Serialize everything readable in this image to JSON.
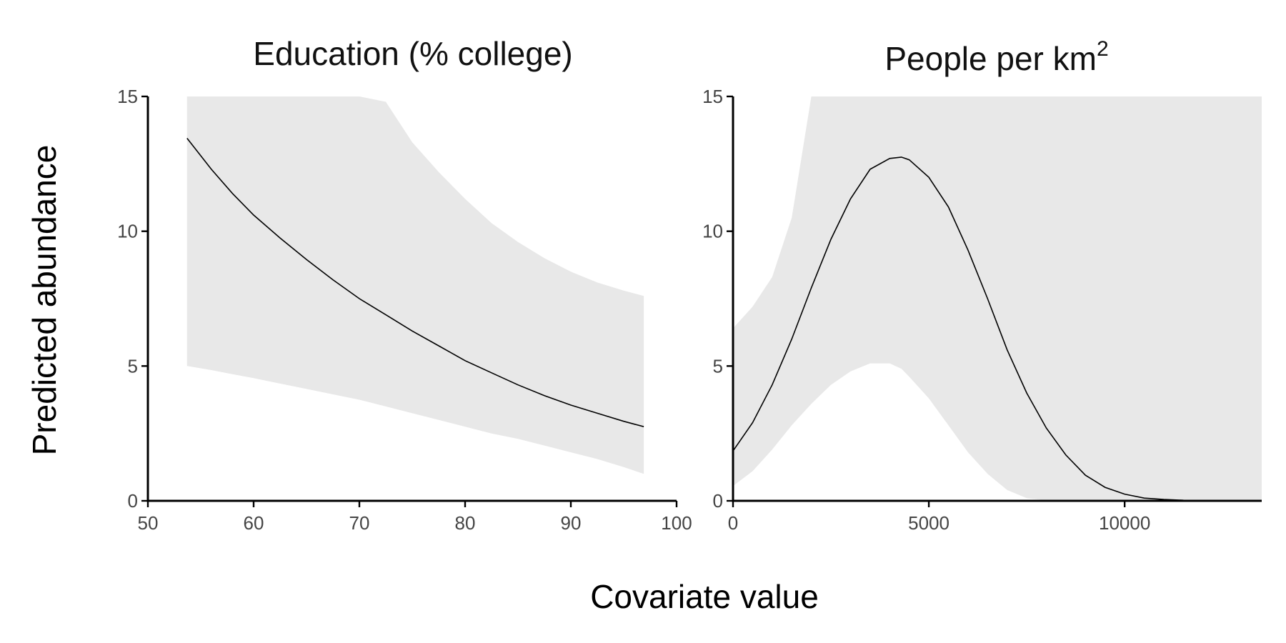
{
  "figure": {
    "xlabel": "Covariate value",
    "ylabel": "Predicted abundance"
  },
  "chart_data": [
    {
      "type": "line",
      "title": "Education (% college)",
      "xlim": [
        50,
        100
      ],
      "ylim": [
        0,
        15
      ],
      "xticks": [
        50,
        60,
        70,
        80,
        90,
        100
      ],
      "yticks": [
        0,
        5,
        10,
        15
      ],
      "x": [
        53.7,
        56,
        58,
        60,
        62.5,
        65,
        67.5,
        70,
        72.5,
        75,
        77.5,
        80,
        82.5,
        85,
        87.5,
        90,
        92.5,
        95,
        96.9
      ],
      "fit": [
        13.45,
        12.3,
        11.4,
        10.6,
        9.75,
        8.95,
        8.2,
        7.5,
        6.9,
        6.3,
        5.75,
        5.2,
        4.75,
        4.3,
        3.9,
        3.55,
        3.25,
        2.95,
        2.75
      ],
      "lower": [
        5.0,
        4.85,
        4.7,
        4.55,
        4.35,
        4.15,
        3.95,
        3.75,
        3.5,
        3.25,
        3.0,
        2.75,
        2.5,
        2.3,
        2.05,
        1.8,
        1.55,
        1.25,
        1.0
      ],
      "upper": [
        15,
        15,
        15,
        15,
        15,
        15,
        15,
        15,
        14.8,
        13.3,
        12.2,
        11.2,
        10.3,
        9.6,
        9.0,
        8.5,
        8.1,
        7.8,
        7.6
      ],
      "series": [
        {
          "values_key": "fit"
        }
      ]
    },
    {
      "type": "line",
      "title": "People per km",
      "title_superscript": "2",
      "xlim": [
        0,
        13500
      ],
      "ylim": [
        0,
        15
      ],
      "xticks": [
        0,
        5000,
        10000
      ],
      "yticks": [
        0,
        5,
        10,
        15
      ],
      "x": [
        0,
        500,
        1000,
        1500,
        2000,
        2500,
        3000,
        3500,
        4000,
        4300,
        4500,
        5000,
        5500,
        6000,
        6500,
        7000,
        7500,
        8000,
        8500,
        9000,
        9500,
        10000,
        10500,
        11000,
        11500,
        12000,
        12500,
        13000,
        13500
      ],
      "fit": [
        1.85,
        2.9,
        4.3,
        6.0,
        7.9,
        9.7,
        11.2,
        12.3,
        12.7,
        12.75,
        12.65,
        12.0,
        10.9,
        9.3,
        7.5,
        5.6,
        4.0,
        2.7,
        1.7,
        0.95,
        0.5,
        0.25,
        0.1,
        0.05,
        0.02,
        0.01,
        0,
        0,
        0
      ],
      "lower": [
        0.55,
        1.1,
        1.9,
        2.8,
        3.6,
        4.3,
        4.8,
        5.1,
        5.1,
        4.9,
        4.6,
        3.8,
        2.8,
        1.8,
        1.0,
        0.4,
        0.1,
        0.02,
        0,
        0,
        0,
        0,
        0,
        0,
        0,
        0,
        0,
        0,
        0
      ],
      "upper": [
        6.4,
        7.2,
        8.3,
        10.5,
        15,
        15,
        15,
        15,
        15,
        15,
        15,
        15,
        15,
        15,
        15,
        15,
        15,
        15,
        15,
        15,
        15,
        15,
        15,
        15,
        15,
        15,
        15,
        15,
        15
      ]
    }
  ]
}
